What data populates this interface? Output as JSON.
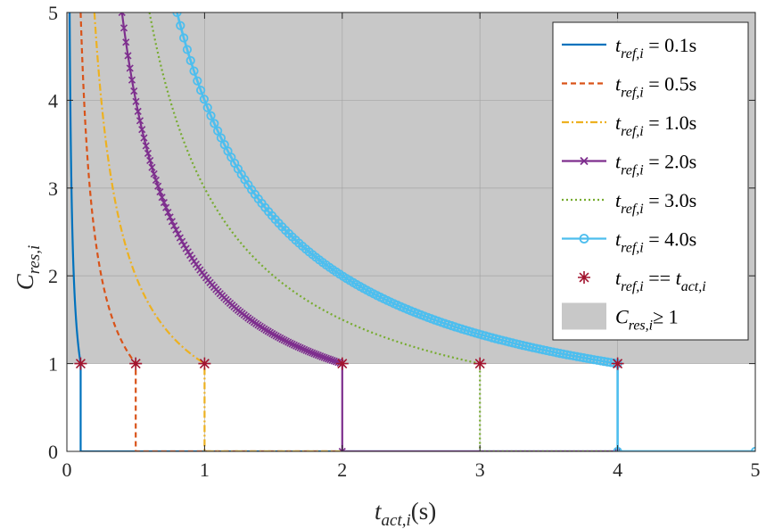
{
  "chart_data": {
    "type": "line",
    "title": "",
    "xlabel": {
      "main": "t",
      "sub": "act,i",
      "suffix": "(s)"
    },
    "ylabel": {
      "main": "C",
      "sub": "res,i"
    },
    "xlim": [
      0,
      5
    ],
    "ylim": [
      0,
      5
    ],
    "xticks": [
      "0",
      "1",
      "2",
      "3",
      "4",
      "5"
    ],
    "yticks": [
      "0",
      "1",
      "2",
      "3",
      "4",
      "5"
    ],
    "grid": true,
    "legend_position": "top-right",
    "shaded_region": {
      "y_min": 1,
      "y_max": 5,
      "color": "#c8c8c8",
      "label": {
        "main": "C",
        "sub": "res,i",
        "rest": "≥ 1"
      }
    },
    "series": [
      {
        "name": "= 0.1s",
        "t_ref": 0.1,
        "color": "#0072bd",
        "style": "solid",
        "marker": "none",
        "t_act_max": 5
      },
      {
        "name": "= 0.5s",
        "t_ref": 0.5,
        "color": "#d95319",
        "style": "dashed",
        "marker": "none",
        "t_act_max": 2
      },
      {
        "name": "= 1.0s",
        "t_ref": 1.0,
        "color": "#edb120",
        "style": "dashdot",
        "marker": "none",
        "t_act_max": 2
      },
      {
        "name": "= 2.0s",
        "t_ref": 2.0,
        "color": "#7e2f8e",
        "style": "solid",
        "marker": "x",
        "t_act_max": 4
      },
      {
        "name": "= 3.0s",
        "t_ref": 3.0,
        "color": "#77ac30",
        "style": "dotted",
        "marker": "none",
        "t_act_max": 4
      },
      {
        "name": "= 4.0s",
        "t_ref": 4.0,
        "color": "#4dbeee",
        "style": "solid",
        "marker": "o",
        "t_act_max": 5
      }
    ],
    "series_legend_prefix": {
      "main": "t",
      "sub": "ref,i"
    },
    "equality_points": {
      "label": {
        "main": "t",
        "sub": "ref,i",
        "mid": " == ",
        "main2": "t",
        "sub2": "act,i"
      },
      "color": "#a2142f",
      "points": [
        [
          0.1,
          1
        ],
        [
          0.5,
          1
        ],
        [
          1,
          1
        ],
        [
          2,
          1
        ],
        [
          3,
          1
        ],
        [
          4,
          1
        ]
      ]
    }
  }
}
